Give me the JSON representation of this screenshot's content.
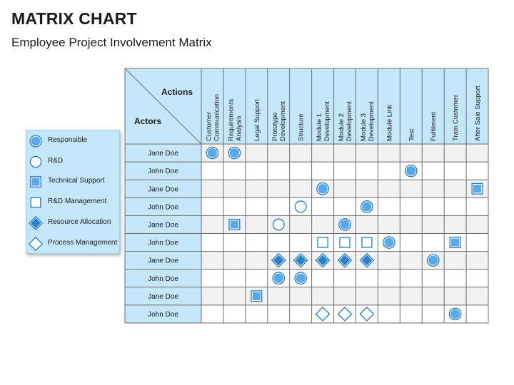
{
  "title": "MATRIX CHART",
  "subtitle": "Employee Project Involvement Matrix",
  "colors": {
    "header_bg": "#c4e7fb",
    "grid_line": "#6e6e6e",
    "cell_alt": "#f2f2f2",
    "symbol_stroke": "#1a6fc6",
    "symbol_fill": "#55aaee"
  },
  "legend": [
    {
      "key": "responsible",
      "label": "Responsible",
      "icon": "filled-circle-icon"
    },
    {
      "key": "rd",
      "label": "R&D",
      "icon": "outline-circle-icon"
    },
    {
      "key": "technical_support",
      "label": "Technical Support",
      "icon": "filled-square-icon"
    },
    {
      "key": "rd_management",
      "label": "R&D Management",
      "icon": "outline-square-icon"
    },
    {
      "key": "resource_allocation",
      "label": "Resource Allocation",
      "icon": "filled-diamond-icon"
    },
    {
      "key": "process_management",
      "label": "Process Management",
      "icon": "outline-diamond-icon"
    }
  ],
  "matrix": {
    "corner_top": "Actions",
    "corner_bottom": "Actors",
    "columns": [
      [
        "Customer",
        "Communication"
      ],
      [
        "Requirements",
        "Analysis"
      ],
      [
        "Legal Support"
      ],
      [
        "Prototype",
        "Development"
      ],
      [
        "Structure"
      ],
      [
        "Module 1",
        "Development"
      ],
      [
        "Module 2",
        "Development"
      ],
      [
        "Module 3",
        "Development"
      ],
      [
        "Module Link"
      ],
      [
        "Test"
      ],
      [
        "Fulfilment"
      ],
      [
        "Train Customer"
      ],
      [
        "After Sale Support"
      ]
    ],
    "rows": [
      "Jane Doe",
      "John Doe",
      "Jane Doe",
      "John Doe",
      "Jane Doe",
      "John Doe",
      "Jane Doe",
      "John Doe",
      "Jane Doe",
      "John Doe"
    ],
    "cells": [
      {
        "row": 0,
        "col": 0,
        "symbol": "responsible"
      },
      {
        "row": 0,
        "col": 1,
        "symbol": "responsible"
      },
      {
        "row": 1,
        "col": 9,
        "symbol": "responsible"
      },
      {
        "row": 2,
        "col": 5,
        "symbol": "responsible"
      },
      {
        "row": 2,
        "col": 12,
        "symbol": "technical_support"
      },
      {
        "row": 3,
        "col": 4,
        "symbol": "rd"
      },
      {
        "row": 3,
        "col": 7,
        "symbol": "responsible"
      },
      {
        "row": 4,
        "col": 1,
        "symbol": "technical_support"
      },
      {
        "row": 4,
        "col": 3,
        "symbol": "rd"
      },
      {
        "row": 4,
        "col": 6,
        "symbol": "responsible"
      },
      {
        "row": 5,
        "col": 5,
        "symbol": "rd_management"
      },
      {
        "row": 5,
        "col": 6,
        "symbol": "rd_management"
      },
      {
        "row": 5,
        "col": 7,
        "symbol": "rd_management"
      },
      {
        "row": 5,
        "col": 8,
        "symbol": "responsible"
      },
      {
        "row": 5,
        "col": 11,
        "symbol": "technical_support"
      },
      {
        "row": 6,
        "col": 3,
        "symbol": "resource_allocation"
      },
      {
        "row": 6,
        "col": 4,
        "symbol": "resource_allocation"
      },
      {
        "row": 6,
        "col": 5,
        "symbol": "resource_allocation"
      },
      {
        "row": 6,
        "col": 6,
        "symbol": "resource_allocation"
      },
      {
        "row": 6,
        "col": 7,
        "symbol": "resource_allocation"
      },
      {
        "row": 6,
        "col": 10,
        "symbol": "responsible"
      },
      {
        "row": 7,
        "col": 3,
        "symbol": "responsible"
      },
      {
        "row": 7,
        "col": 4,
        "symbol": "responsible"
      },
      {
        "row": 8,
        "col": 2,
        "symbol": "technical_support"
      },
      {
        "row": 9,
        "col": 5,
        "symbol": "process_management"
      },
      {
        "row": 9,
        "col": 6,
        "symbol": "process_management"
      },
      {
        "row": 9,
        "col": 7,
        "symbol": "process_management"
      },
      {
        "row": 9,
        "col": 11,
        "symbol": "responsible"
      }
    ]
  }
}
